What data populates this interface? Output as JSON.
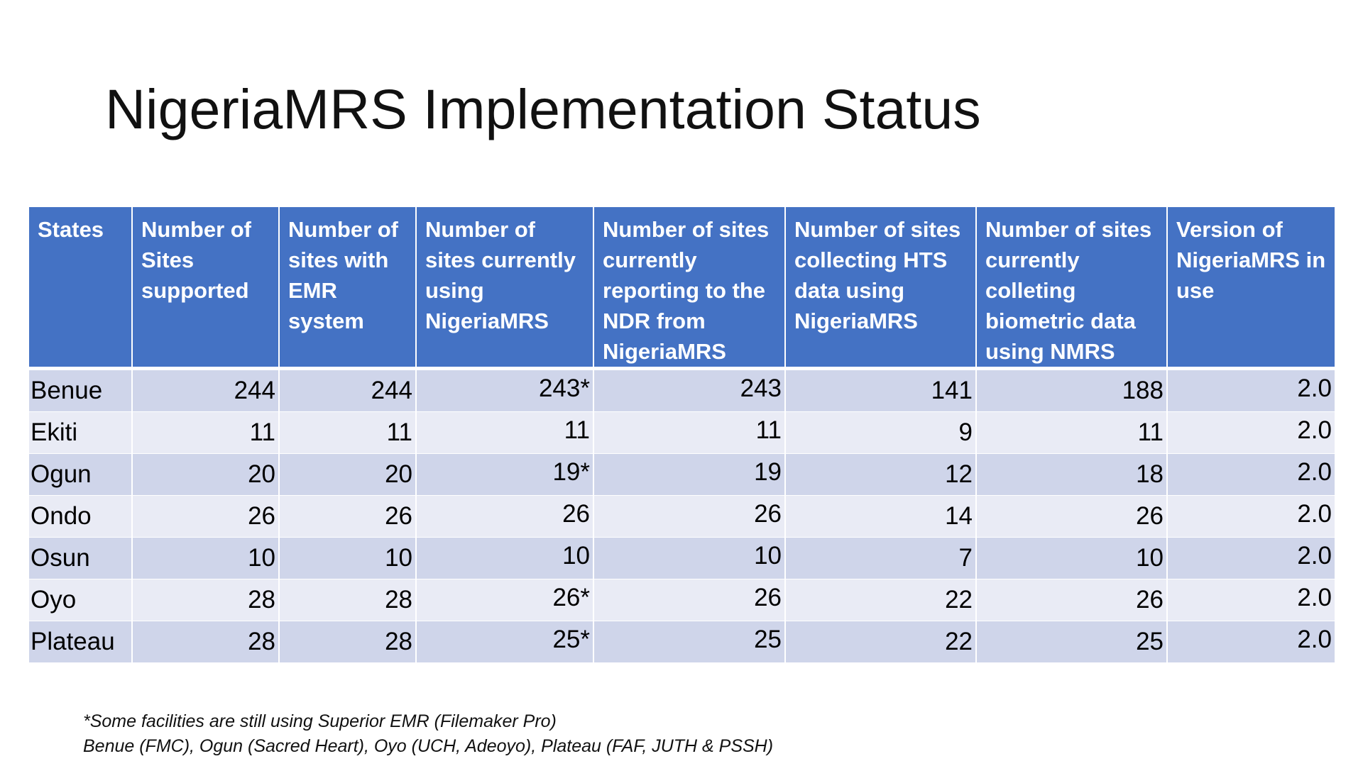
{
  "slide": {
    "title": "NigeriaMRS Implementation Status"
  },
  "table": {
    "headers": [
      "States",
      "Number of Sites supported",
      "Number of sites with EMR system",
      "Number of sites currently using NigeriaMRS",
      "Number of sites currently reporting to the NDR from NigeriaMRS",
      "Number of sites collecting HTS data using NigeriaMRS",
      "Number of sites currently colleting biometric data using NMRS",
      "Version of NigeriaMRS in use"
    ],
    "rows": [
      [
        "Benue",
        "244",
        "244",
        "243*",
        "243",
        "141",
        "188",
        "2.0"
      ],
      [
        "Ekiti",
        "11",
        "11",
        "11",
        "11",
        "9",
        "11",
        "2.0"
      ],
      [
        "Ogun",
        "20",
        "20",
        "19*",
        "19",
        "12",
        "18",
        "2.0"
      ],
      [
        "Ondo",
        "26",
        "26",
        "26",
        "26",
        "14",
        "26",
        "2.0"
      ],
      [
        "Osun",
        "10",
        "10",
        "10",
        "10",
        "7",
        "10",
        "2.0"
      ],
      [
        "Oyo",
        "28",
        "28",
        "26*",
        "26",
        "22",
        "26",
        "2.0"
      ],
      [
        "Plateau",
        "28",
        "28",
        "25*",
        "25",
        "22",
        "25",
        "2.0"
      ]
    ]
  },
  "footnote": {
    "line1": "*Some facilities are still using Superior EMR (Filemaker Pro)",
    "line2": "Benue (FMC), Ogun (Sacred Heart), Oyo (UCH, Adeoyo), Plateau (FAF, JUTH & PSSH)"
  },
  "colors": {
    "header_bg": "#4472c4",
    "row_dark": "#cfd5ea",
    "row_light": "#e9ebf5"
  }
}
